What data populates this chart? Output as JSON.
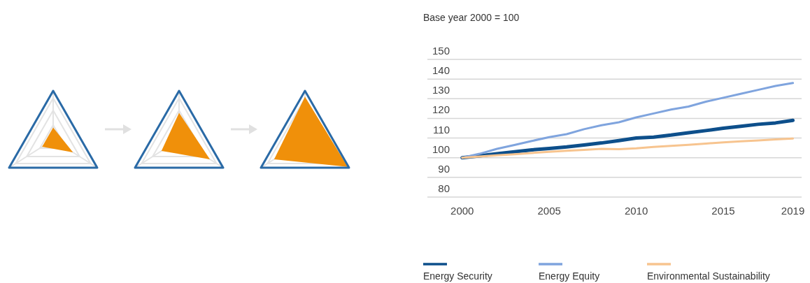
{
  "chart_data": {
    "type": "line",
    "ylabel": "Base year 2000 = 100",
    "x": [
      2000,
      2001,
      2002,
      2003,
      2004,
      2005,
      2006,
      2007,
      2008,
      2009,
      2010,
      2011,
      2012,
      2013,
      2014,
      2015,
      2016,
      2017,
      2018,
      2019
    ],
    "series": [
      {
        "name": "Energy Security",
        "color": "#0d4f8b",
        "values": [
          100,
          101,
          102,
          103,
          104,
          104.7,
          105.5,
          106.5,
          107.5,
          108.7,
          110,
          110.5,
          111.5,
          112.7,
          113.8,
          115,
          116,
          117,
          117.7,
          119
        ]
      },
      {
        "name": "Energy Equity",
        "color": "#7fa4de",
        "values": [
          100,
          102,
          104.5,
          106.5,
          108.5,
          110.5,
          112,
          114.5,
          116.5,
          118,
          120.5,
          122.5,
          124.5,
          126,
          128.5,
          130.5,
          132.5,
          134.5,
          136.5,
          138
        ]
      },
      {
        "name": "Environmental Sustainability",
        "color": "#f7c48f",
        "values": [
          100,
          100.6,
          101.2,
          101.8,
          102.4,
          103,
          103.5,
          104,
          104.5,
          104.3,
          104.8,
          105.5,
          106,
          106.6,
          107.2,
          107.8,
          108.3,
          108.8,
          109.3,
          109.8
        ]
      }
    ],
    "xlim": [
      1998,
      2019.5
    ],
    "xticks": [
      2000,
      2005,
      2010,
      2015,
      2019
    ],
    "ylim": [
      80,
      150
    ],
    "yticks": [
      80,
      90,
      100,
      110,
      120,
      130,
      140,
      150
    ],
    "grid": "y",
    "legend": "bottom",
    "line_style": "solid",
    "marker": "none"
  }
}
